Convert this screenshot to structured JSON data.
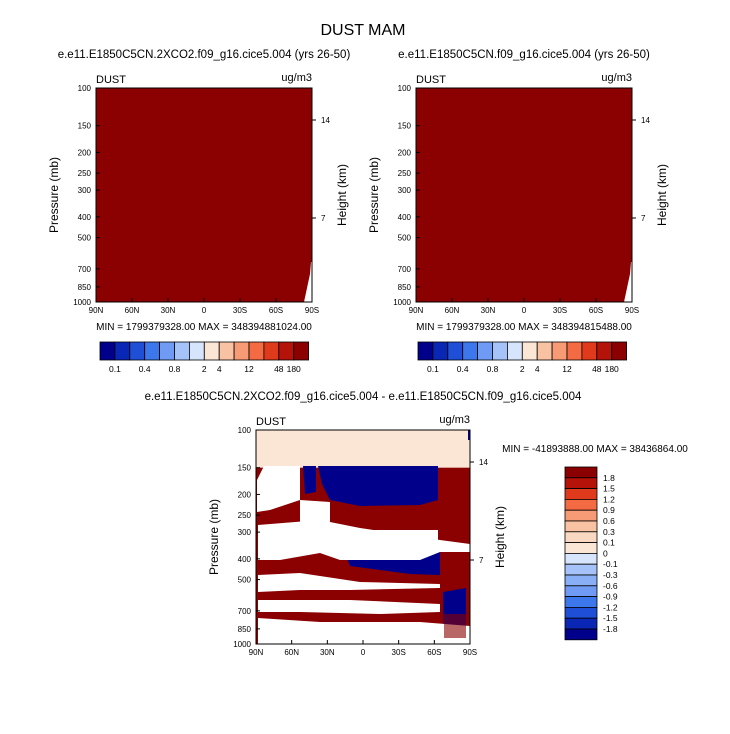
{
  "chart_data": {
    "type": "heatmap",
    "title": "DUST MAM",
    "units": "ug/m3",
    "variable": "DUST",
    "panels": [
      {
        "title": "e.e11.E1850C5CN.2XCO2.f09_g16.cice5.004 (yrs 26-50)",
        "corner_left": "DUST",
        "corner_right": "ug/m3",
        "xlabel": "",
        "ylabel": "Pressure (mb)",
        "ylabel_right": "Height (km)",
        "x_ticks": [
          "90N",
          "60N",
          "30N",
          "0",
          "30S",
          "60S",
          "90S"
        ],
        "y_ticks": [
          "100",
          "150",
          "200",
          "250",
          "300",
          "400",
          "500",
          "700",
          "850",
          "1000"
        ],
        "height_ticks": [
          "14",
          "7"
        ],
        "min_label": "MIN = 1799379328.00",
        "max_label": "MAX = 348394881024.00",
        "fill_color": "#8b0000"
      },
      {
        "title": "e.e11.E1850C5CN.f09_g16.cice5.004 (yrs 26-50)",
        "corner_left": "DUST",
        "corner_right": "ug/m3",
        "xlabel": "",
        "ylabel": "Pressure (mb)",
        "ylabel_right": "Height (km)",
        "x_ticks": [
          "90N",
          "60N",
          "30N",
          "0",
          "30S",
          "60S",
          "90S"
        ],
        "y_ticks": [
          "100",
          "150",
          "200",
          "250",
          "300",
          "400",
          "500",
          "700",
          "850",
          "1000"
        ],
        "height_ticks": [
          "14",
          "7"
        ],
        "min_label": "MIN = 1799379328.00",
        "max_label": "MAX = 348394815488.00",
        "fill_color": "#8b0000"
      },
      {
        "title": "e.e11.E1850C5CN.2XCO2.f09_g16.cice5.004 - e.e11.E1850C5CN.f09_g16.cice5.004",
        "corner_left": "DUST",
        "corner_right": "ug/m3",
        "xlabel": "",
        "ylabel": "Pressure (mb)",
        "ylabel_right": "Height (km)",
        "x_ticks": [
          "90N",
          "60N",
          "30N",
          "0",
          "30S",
          "60S",
          "90S"
        ],
        "y_ticks": [
          "100",
          "150",
          "200",
          "250",
          "300",
          "400",
          "500",
          "700",
          "850",
          "1000"
        ],
        "height_ticks": [
          "14",
          "7"
        ],
        "min_label": "MIN = -41893888.00",
        "max_label": "MAX = 38436864.00"
      }
    ],
    "abs_colorbar": {
      "labels": [
        "0.1",
        "0.4",
        "0.8",
        "2",
        "4",
        "12",
        "48",
        "180"
      ],
      "colors": [
        "#00008b",
        "#0a26b4",
        "#1f4fd6",
        "#3d77ec",
        "#6f9bf4",
        "#a5c3f8",
        "#d6e5fb",
        "#fbe6d5",
        "#f9c3a3",
        "#f79b76",
        "#f46a43",
        "#e03a1c",
        "#b5120a",
        "#8b0000"
      ]
    },
    "diff_colorbar": {
      "labels": [
        "1.8",
        "1.5",
        "1.2",
        "0.9",
        "0.6",
        "0.3",
        "0.1",
        "0",
        "-0.1",
        "-0.3",
        "-0.6",
        "-0.9",
        "-1.2",
        "-1.5",
        "-1.8"
      ],
      "colors": [
        "#8b0000",
        "#b5120a",
        "#e03a1c",
        "#f46a43",
        "#f79b76",
        "#f9c3a3",
        "#fad9c3",
        "#fbe6d5",
        "#d6e5fb",
        "#a5c3f8",
        "#89aff6",
        "#6f9bf4",
        "#3d77ec",
        "#1f4fd6",
        "#0a26b4",
        "#00008b"
      ]
    }
  }
}
